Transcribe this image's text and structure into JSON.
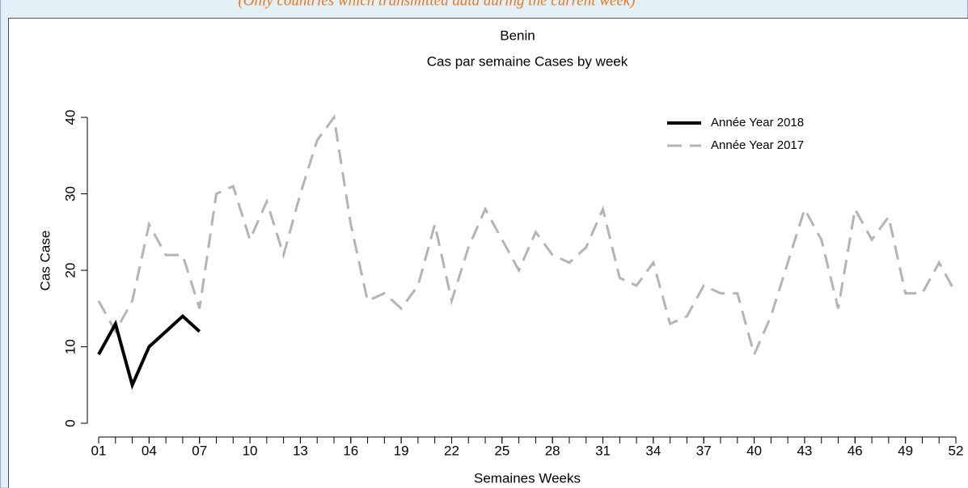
{
  "note": "(Only countries which transmitted data during the current week)",
  "chart_data": {
    "type": "line",
    "title": "Benin",
    "subtitle": "Cas par semaine Cases by week",
    "x_label": "Semaines Weeks",
    "y_label": "Cas Case",
    "x": [
      1,
      2,
      3,
      4,
      5,
      6,
      7,
      8,
      9,
      10,
      11,
      12,
      13,
      14,
      15,
      16,
      17,
      18,
      19,
      20,
      21,
      22,
      23,
      24,
      25,
      26,
      27,
      28,
      29,
      30,
      31,
      32,
      33,
      34,
      35,
      36,
      37,
      38,
      39,
      40,
      41,
      42,
      43,
      44,
      45,
      46,
      47,
      48,
      49,
      50,
      51,
      52
    ],
    "series": [
      {
        "name": "Année Year 2018",
        "color": "#000000",
        "dashed": false,
        "values": [
          9,
          13,
          5,
          10,
          12,
          14,
          12,
          null,
          null,
          null,
          null,
          null,
          null,
          null,
          null,
          null,
          null,
          null,
          null,
          null,
          null,
          null,
          null,
          null,
          null,
          null,
          null,
          null,
          null,
          null,
          null,
          null,
          null,
          null,
          null,
          null,
          null,
          null,
          null,
          null,
          null,
          null,
          null,
          null,
          null,
          null,
          null,
          null,
          null,
          null,
          null,
          null
        ]
      },
      {
        "name": "Année Year 2017",
        "color": "#b4b4b4",
        "dashed": true,
        "values": [
          16,
          12,
          16,
          26,
          22,
          22,
          15,
          30,
          31,
          24,
          29,
          22,
          30,
          37,
          40,
          26,
          16,
          17,
          15,
          18,
          26,
          16,
          23,
          28,
          24,
          20,
          25,
          22,
          21,
          23,
          28,
          19,
          18,
          21,
          13,
          14,
          18,
          17,
          17,
          9,
          14,
          21,
          28,
          24,
          15,
          28,
          24,
          27,
          17,
          17,
          21,
          17
        ]
      }
    ],
    "xlim": [
      1,
      52
    ],
    "xticks": [
      {
        "value": 1,
        "label": "01"
      },
      {
        "value": 4,
        "label": "04"
      },
      {
        "value": 7,
        "label": "07"
      },
      10,
      13,
      16,
      19,
      22,
      25,
      28,
      31,
      34,
      37,
      40,
      43,
      46,
      49,
      52
    ],
    "ylim": [
      0,
      40
    ],
    "yticks": [
      0,
      10,
      20,
      30,
      40
    ],
    "legend": "top-right"
  }
}
